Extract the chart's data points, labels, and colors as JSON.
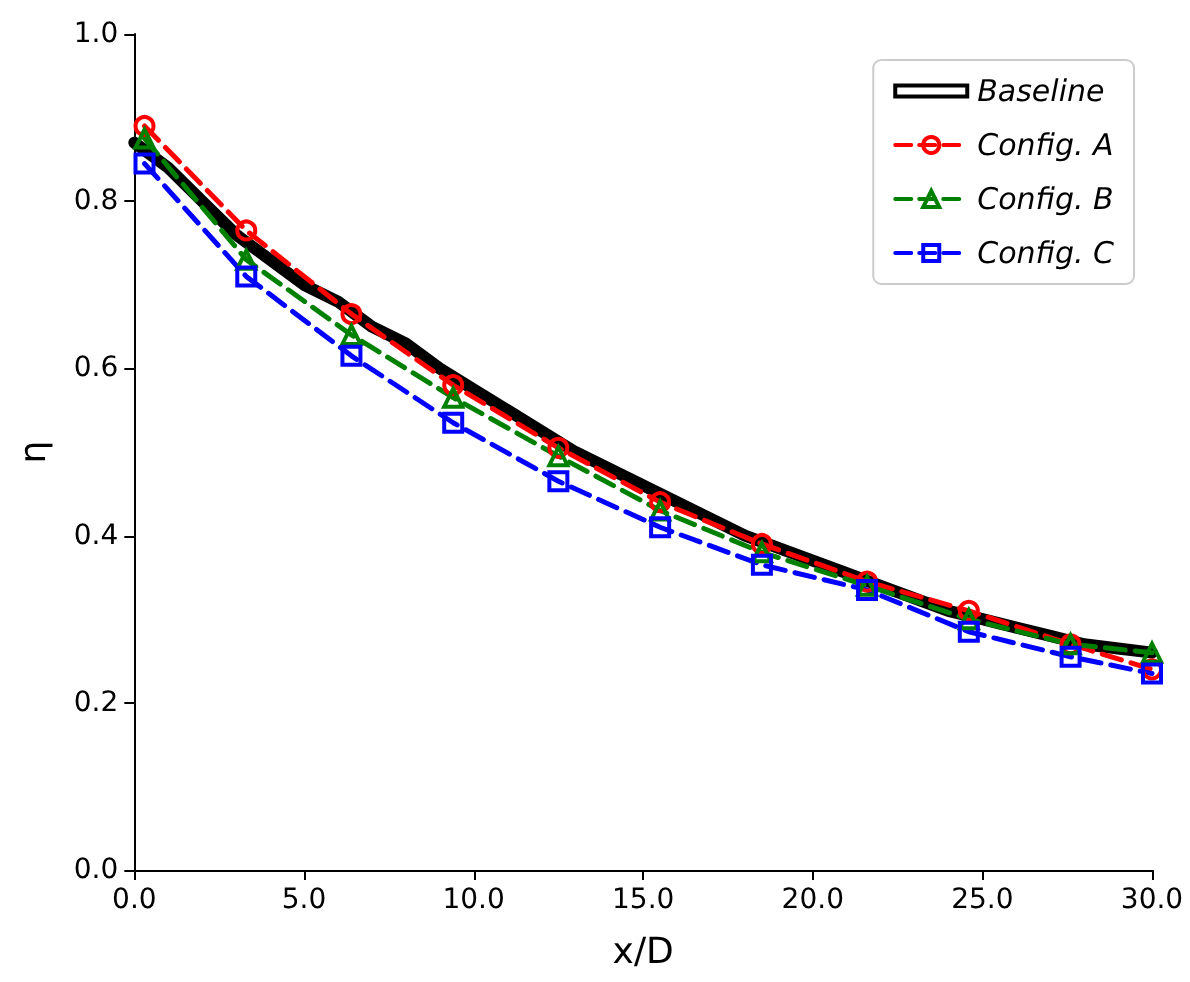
{
  "chart_data": {
    "type": "line",
    "xlabel": "x/D",
    "ylabel": "η",
    "xlim": [
      0,
      30
    ],
    "ylim": [
      0,
      1
    ],
    "xticks": [
      {
        "value": 0,
        "label": "0.0"
      },
      {
        "value": 5,
        "label": "5.0"
      },
      {
        "value": 10,
        "label": "10.0"
      },
      {
        "value": 15,
        "label": "15.0"
      },
      {
        "value": 20,
        "label": "20.0"
      },
      {
        "value": 25,
        "label": "25.0"
      },
      {
        "value": 30,
        "label": "30.0"
      }
    ],
    "yticks": [
      {
        "value": 0,
        "label": "0.0"
      },
      {
        "value": 0.2,
        "label": "0.2"
      },
      {
        "value": 0.4,
        "label": "0.4"
      },
      {
        "value": 0.6,
        "label": "0.6"
      },
      {
        "value": 0.8,
        "label": "0.8"
      },
      {
        "value": 1,
        "label": "1.0"
      }
    ],
    "grid": false,
    "legend": "top right",
    "series": [
      {
        "name": "Baseline",
        "color": "#000000",
        "marker": "none",
        "line_style": "solid",
        "x": [
          0,
          1,
          2,
          3,
          4,
          5,
          6,
          7,
          8,
          9,
          10,
          11,
          12,
          13,
          14,
          15,
          16,
          17,
          18,
          19,
          20,
          21,
          22,
          23,
          24,
          25,
          26,
          27,
          28,
          29,
          30
        ],
        "values": [
          0.87,
          0.84,
          0.8,
          0.76,
          0.73,
          0.7,
          0.68,
          0.65,
          0.63,
          0.6,
          0.575,
          0.55,
          0.525,
          0.5,
          0.48,
          0.46,
          0.44,
          0.42,
          0.4,
          0.385,
          0.37,
          0.355,
          0.34,
          0.325,
          0.31,
          0.3,
          0.29,
          0.28,
          0.27,
          0.265,
          0.26
        ]
      },
      {
        "name": "Config. A",
        "color": "#ff0000",
        "marker": "circle",
        "line_style": "dashed",
        "x": [
          0.3,
          3.3,
          6.4,
          9.4,
          12.5,
          15.5,
          18.5,
          21.6,
          24.6,
          27.6,
          30
        ],
        "values": [
          0.89,
          0.765,
          0.665,
          0.58,
          0.505,
          0.44,
          0.39,
          0.345,
          0.31,
          0.27,
          0.24
        ]
      },
      {
        "name": "Config. B",
        "color": "#008000",
        "marker": "triangle",
        "line_style": "dashed",
        "x": [
          0.3,
          3.3,
          6.4,
          9.4,
          12.5,
          15.5,
          18.5,
          21.6,
          24.6,
          27.6,
          30
        ],
        "values": [
          0.875,
          0.73,
          0.64,
          0.565,
          0.495,
          0.43,
          0.38,
          0.34,
          0.3,
          0.27,
          0.26
        ]
      },
      {
        "name": "Config. C",
        "color": "#0000ff",
        "marker": "square",
        "line_style": "dashed",
        "x": [
          0.3,
          3.3,
          6.4,
          9.4,
          12.5,
          15.5,
          18.5,
          21.6,
          24.6,
          27.6,
          30
        ],
        "values": [
          0.845,
          0.71,
          0.615,
          0.535,
          0.465,
          0.41,
          0.365,
          0.335,
          0.285,
          0.255,
          0.235
        ]
      }
    ]
  }
}
